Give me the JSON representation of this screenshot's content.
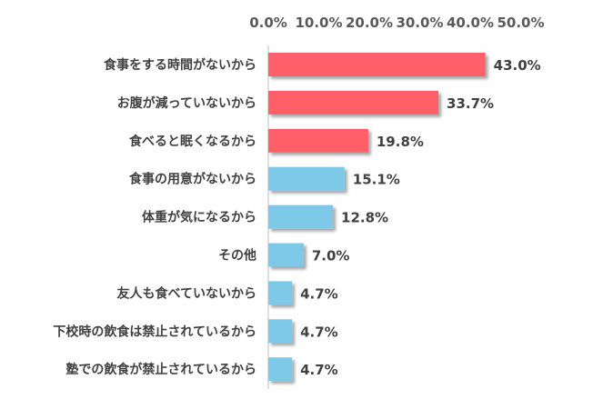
{
  "chart_data": {
    "type": "bar",
    "orientation": "horizontal",
    "title": "",
    "xlabel": "",
    "ylabel": "",
    "xlim": [
      0,
      50
    ],
    "x_ticks": [
      "0.0%",
      "10.0%",
      "20.0%",
      "30.0%",
      "40.0%",
      "50.0%"
    ],
    "x_axis_position": "top",
    "grid": false,
    "legend": "none",
    "categories": [
      "食事をする時間がないから",
      "お腹が減っていないから",
      "食べると眠くなるから",
      "食事の用意がないから",
      "体重が気になるから",
      "その他",
      "友人も食べていないから",
      "下校時の飲食は禁止されているから",
      "塾での飲食が禁止されているから"
    ],
    "values": [
      43.0,
      33.7,
      19.8,
      15.1,
      12.8,
      7.0,
      4.7,
      4.7,
      4.7
    ],
    "value_labels": [
      "43.0%",
      "33.7%",
      "19.8%",
      "15.1%",
      "12.8%",
      "7.0%",
      "4.7%",
      "4.7%",
      "4.7%"
    ],
    "bar_colors": [
      "#ff5f67",
      "#ff5f67",
      "#ff5f67",
      "#7ec8e8",
      "#7ec8e8",
      "#7ec8e8",
      "#7ec8e8",
      "#7ec8e8",
      "#7ec8e8"
    ]
  }
}
